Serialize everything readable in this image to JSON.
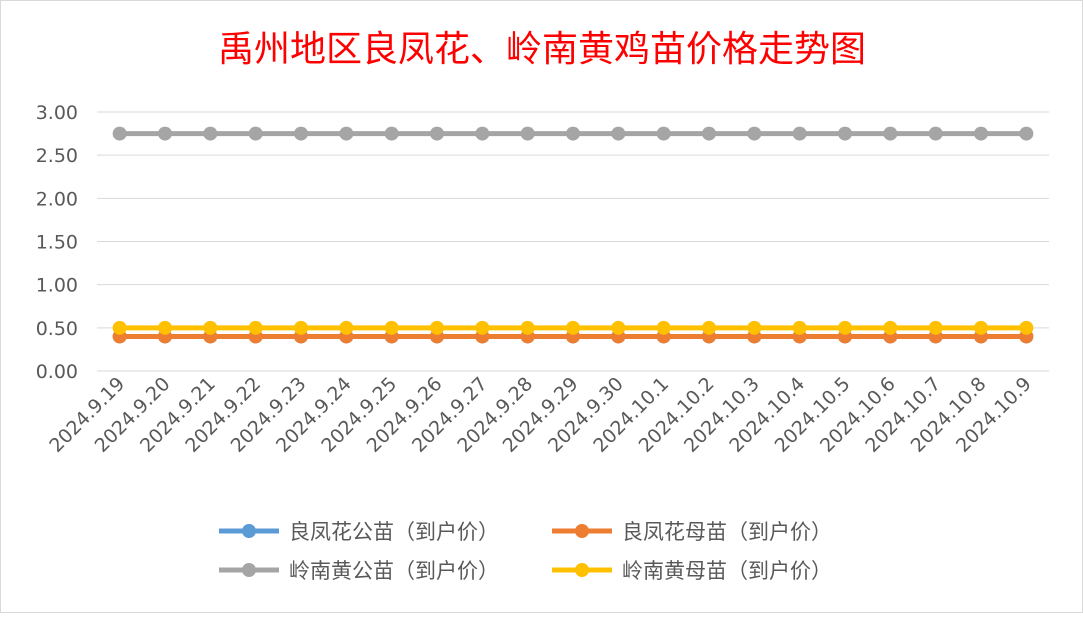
{
  "chart_data": {
    "type": "line",
    "title": "禹州地区良凤花、岭南黄鸡苗价格走势图",
    "xlabel": "",
    "ylabel": "",
    "categories": [
      "2024.9.19",
      "2024.9.20",
      "2024.9.21",
      "2024.9.22",
      "2024.9.23",
      "2024.9.24",
      "2024.9.25",
      "2024.9.26",
      "2024.9.27",
      "2024.9.28",
      "2024.9.29",
      "2024.9.30",
      "2024.10.1",
      "2024.10.2",
      "2024.10.3",
      "2024.10.4",
      "2024.10.5",
      "2024.10.6",
      "2024.10.7",
      "2024.10.8",
      "2024.10.9"
    ],
    "ylim": [
      0,
      3
    ],
    "yticks": [
      "0.00",
      "0.50",
      "1.00",
      "1.50",
      "2.00",
      "2.50",
      "3.00"
    ],
    "grid": true,
    "legend_position": "bottom",
    "series": [
      {
        "name": "良凤花公苗（到户价）",
        "color": "#5B9BD5",
        "values": [
          0.4,
          0.4,
          0.4,
          0.4,
          0.4,
          0.4,
          0.4,
          0.4,
          0.4,
          0.4,
          0.4,
          0.4,
          0.4,
          0.4,
          0.4,
          0.4,
          0.4,
          0.4,
          0.4,
          0.4,
          0.4
        ]
      },
      {
        "name": "良凤花母苗（到户价）",
        "color": "#ED7D31",
        "values": [
          0.4,
          0.4,
          0.4,
          0.4,
          0.4,
          0.4,
          0.4,
          0.4,
          0.4,
          0.4,
          0.4,
          0.4,
          0.4,
          0.4,
          0.4,
          0.4,
          0.4,
          0.4,
          0.4,
          0.4,
          0.4
        ]
      },
      {
        "name": "岭南黄公苗（到户价）",
        "color": "#A5A5A5",
        "values": [
          2.75,
          2.75,
          2.75,
          2.75,
          2.75,
          2.75,
          2.75,
          2.75,
          2.75,
          2.75,
          2.75,
          2.75,
          2.75,
          2.75,
          2.75,
          2.75,
          2.75,
          2.75,
          2.75,
          2.75,
          2.75
        ]
      },
      {
        "name": "岭南黄母苗（到户价）",
        "color": "#FFC000",
        "values": [
          0.5,
          0.5,
          0.5,
          0.5,
          0.5,
          0.5,
          0.5,
          0.5,
          0.5,
          0.5,
          0.5,
          0.5,
          0.5,
          0.5,
          0.5,
          0.5,
          0.5,
          0.5,
          0.5,
          0.5,
          0.5
        ]
      }
    ],
    "title_color": "#FF0000",
    "grid_color": "#D9D9D9",
    "text_color": "#595959"
  }
}
